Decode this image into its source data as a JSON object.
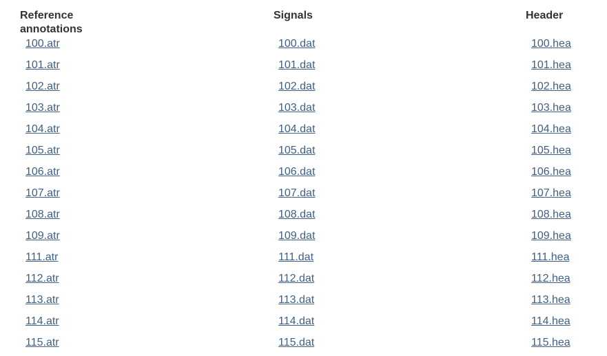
{
  "table": {
    "headers": {
      "annotations": "Reference annotations",
      "signals": "Signals",
      "header": "Header"
    },
    "rows": [
      {
        "annotation": "100.atr",
        "signal": "100.dat",
        "header": "100.hea"
      },
      {
        "annotation": "101.atr",
        "signal": "101.dat",
        "header": "101.hea"
      },
      {
        "annotation": "102.atr",
        "signal": "102.dat",
        "header": "102.hea"
      },
      {
        "annotation": "103.atr",
        "signal": "103.dat",
        "header": "103.hea"
      },
      {
        "annotation": "104.atr",
        "signal": "104.dat",
        "header": "104.hea"
      },
      {
        "annotation": "105.atr",
        "signal": "105.dat",
        "header": "105.hea"
      },
      {
        "annotation": "106.atr",
        "signal": "106.dat",
        "header": "106.hea"
      },
      {
        "annotation": "107.atr",
        "signal": "107.dat",
        "header": "107.hea"
      },
      {
        "annotation": "108.atr",
        "signal": "108.dat",
        "header": "108.hea"
      },
      {
        "annotation": "109.atr",
        "signal": "109.dat",
        "header": "109.hea"
      },
      {
        "annotation": "111.atr",
        "signal": "111.dat",
        "header": "111.hea"
      },
      {
        "annotation": "112.atr",
        "signal": "112.dat",
        "header": "112.hea"
      },
      {
        "annotation": "113.atr",
        "signal": "113.dat",
        "header": "113.hea"
      },
      {
        "annotation": "114.atr",
        "signal": "114.dat",
        "header": "114.hea"
      },
      {
        "annotation": "115.atr",
        "signal": "115.dat",
        "header": "115.hea"
      }
    ]
  },
  "colors": {
    "link": "#3f5f85",
    "heading": "#333333",
    "background": "#ffffff"
  }
}
